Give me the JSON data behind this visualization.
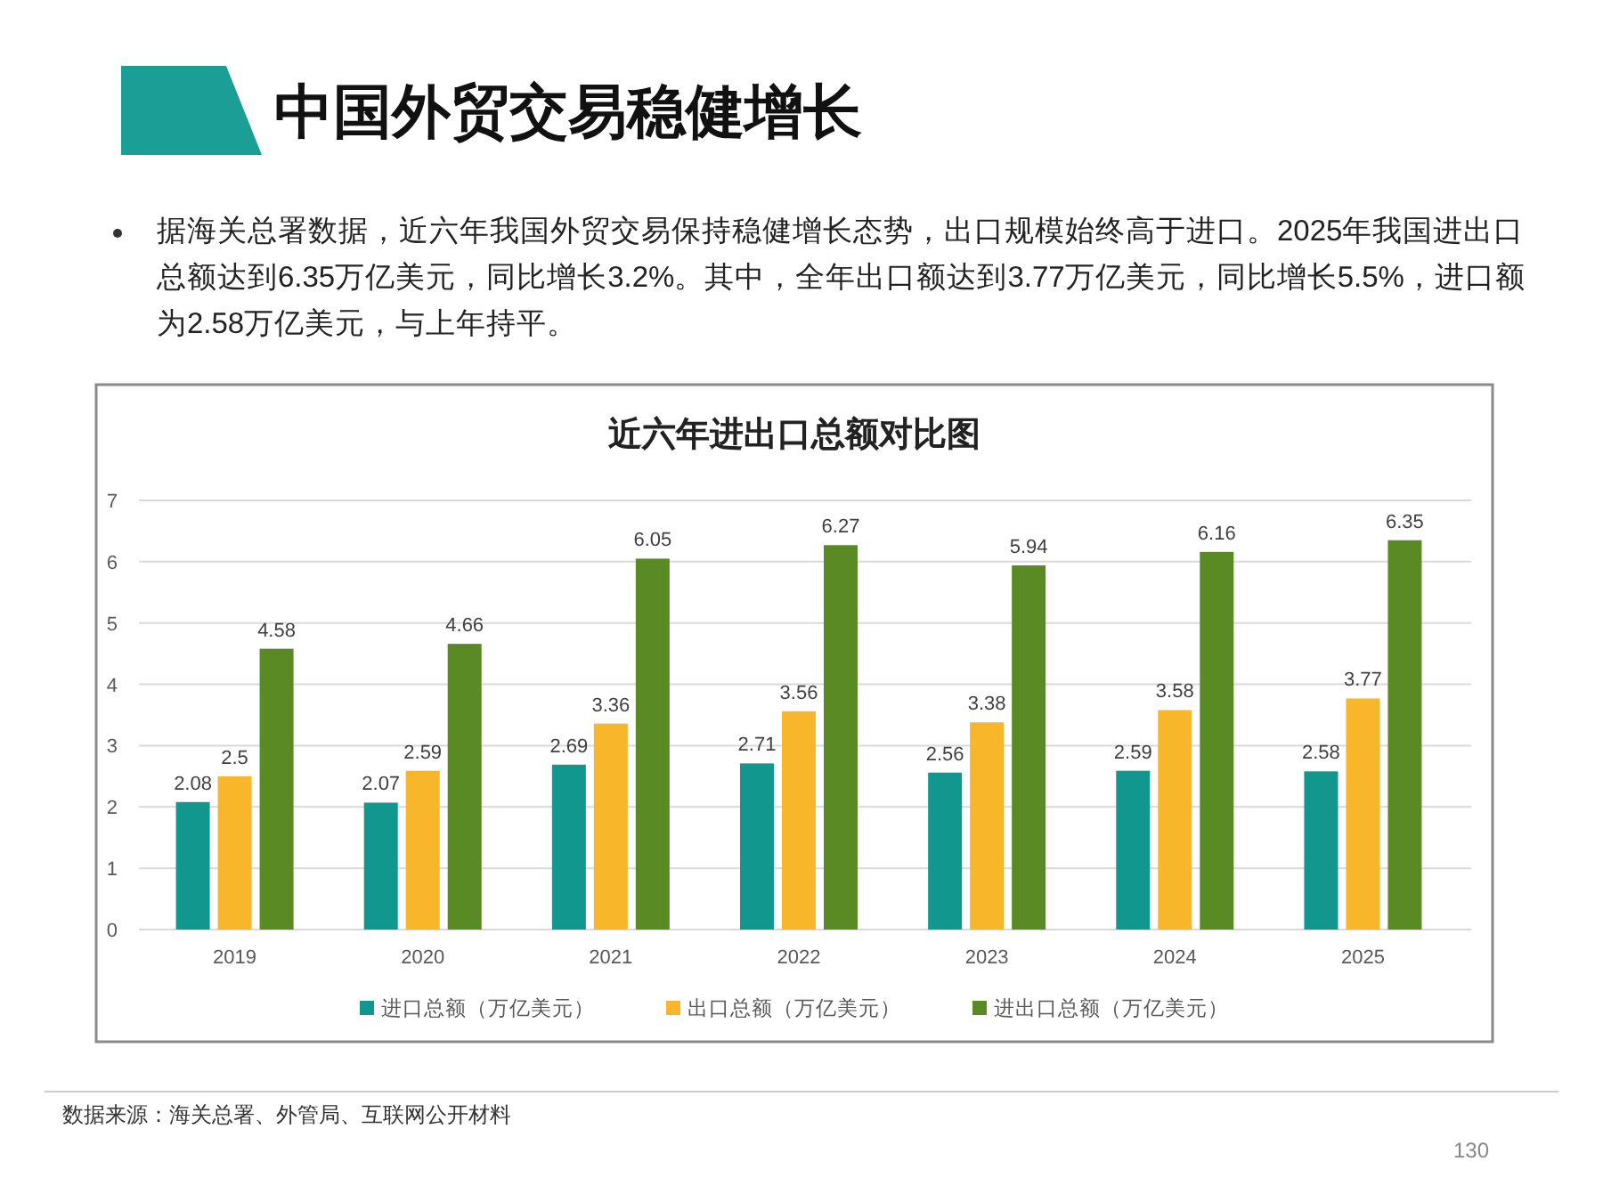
{
  "chart_data": {
    "type": "bar",
    "title": "中国外贸交易稳健增长",
    "subtitle": "近六年进出口总额对比图",
    "categories": [
      "2019",
      "2020",
      "2021",
      "2022",
      "2023",
      "2024",
      "2025"
    ],
    "series": [
      {
        "name": "进口总额（万亿美元）",
        "color": "#12978f",
        "values": [
          2.08,
          2.07,
          2.69,
          2.71,
          2.56,
          2.59,
          2.58
        ]
      },
      {
        "name": "出口总额（万亿美元）",
        "color": "#f8b62a",
        "values": [
          2.5,
          2.59,
          3.36,
          3.56,
          3.38,
          3.58,
          3.77
        ]
      },
      {
        "name": "进出口总额（万亿美元）",
        "color": "#5a8a23",
        "values": [
          4.58,
          4.66,
          6.05,
          6.27,
          5.94,
          6.16,
          6.35
        ]
      }
    ],
    "ylim": [
      0,
      7
    ],
    "yticks": [
      0,
      1,
      2,
      3,
      4,
      5,
      6,
      7
    ],
    "grid": "y",
    "legend": "bottom",
    "data_labels": true,
    "annotations": [
      "据海关总署数据，近六年我国外贸交易保持稳健增长态势，出口规模始终高于进口。2025年我国进出口总额达到6.35万亿美元，同比增长3.2%。其中，全年出口额达到3.77万亿美元，同比增长5.5%，进口额为2.58万亿美元，与上年持平。",
      "数据来源：海关总署、外管局、互联网公开材料",
      "130"
    ]
  }
}
